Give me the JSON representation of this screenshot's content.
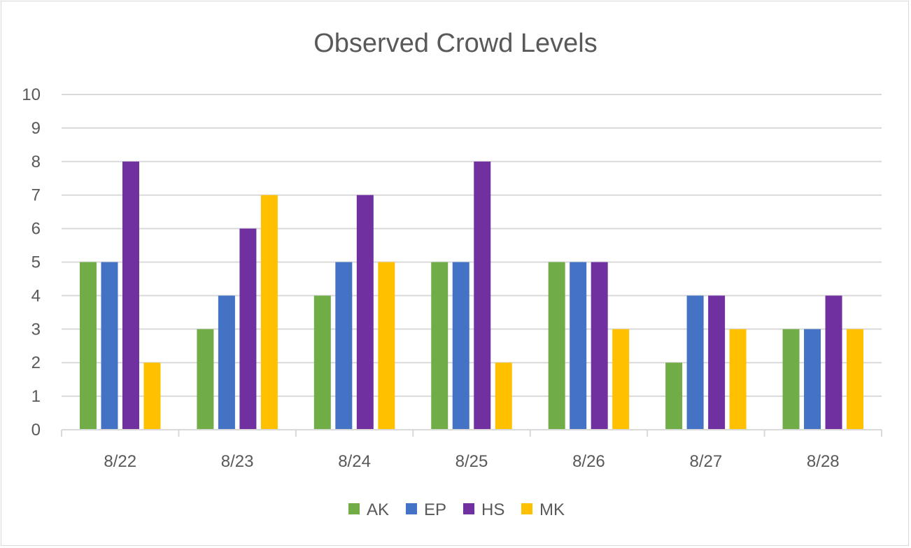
{
  "chart_data": {
    "type": "bar",
    "title": "Observed Crowd Levels",
    "xlabel": "",
    "ylabel": "",
    "ylim": [
      0,
      10
    ],
    "yticks": [
      0,
      1,
      2,
      3,
      4,
      5,
      6,
      7,
      8,
      9,
      10
    ],
    "grid": true,
    "legend_position": "bottom",
    "categories": [
      "8/22",
      "8/23",
      "8/24",
      "8/25",
      "8/26",
      "8/27",
      "8/28"
    ],
    "series": [
      {
        "name": "AK",
        "color": "#70ad47",
        "values": [
          5,
          3,
          4,
          5,
          5,
          2,
          3
        ]
      },
      {
        "name": "EP",
        "color": "#4472c4",
        "values": [
          5,
          4,
          5,
          5,
          5,
          4,
          3
        ]
      },
      {
        "name": "HS",
        "color": "#7030a0",
        "values": [
          8,
          6,
          7,
          8,
          5,
          4,
          4
        ]
      },
      {
        "name": "MK",
        "color": "#ffc000",
        "values": [
          2,
          7,
          5,
          2,
          3,
          3,
          3
        ]
      }
    ]
  }
}
